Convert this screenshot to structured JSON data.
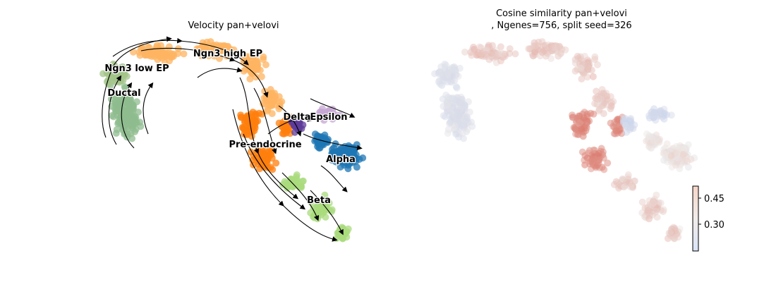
{
  "colors": {
    "Ductal": "#8fbc8f",
    "Ngn3 low EP": "#a3c48a",
    "Ngn3 high EP": "#fdb462",
    "Pre-endocrine": "#ff7f0e",
    "Beta": "#aadb7d",
    "Alpha": "#1f77b4",
    "Delta": "#5e3c99",
    "Epsilon": "#c5a7d3"
  },
  "chart_data": [
    {
      "type": "scatter",
      "title": "Velocity pan+velovi",
      "cluster_labels": [
        "Ngn3 low EP",
        "Ngn3 high EP",
        "Ductal",
        "Delta",
        "Epsilon",
        "Pre-endocrine",
        "Alpha",
        "Beta"
      ],
      "overlay": "streamlines",
      "axes": "off"
    },
    {
      "type": "scatter",
      "title_line1": "Cosine similarity pan+velovi",
      "title_line2": ", Ngenes=756, split seed=326",
      "colormap": "coolwarm",
      "colorbar": {
        "ticks": [
          "0.45",
          "0.30"
        ],
        "range": [
          0.22,
          0.5
        ]
      },
      "axes": "off"
    }
  ]
}
